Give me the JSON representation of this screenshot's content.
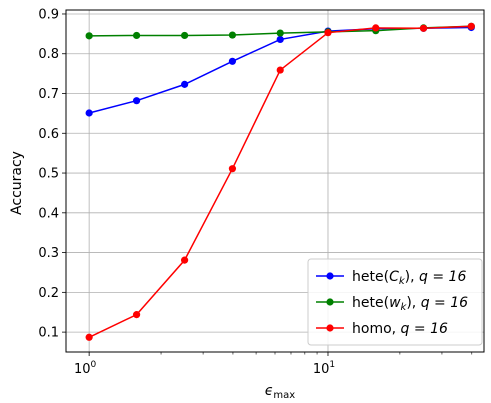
{
  "chart_data": {
    "type": "line",
    "xscale": "log",
    "x": [
      1,
      1.58,
      2.51,
      3.98,
      6.31,
      10,
      15.85,
      25.12,
      39.81
    ],
    "xlim": [
      0.8,
      45
    ],
    "ylim": [
      0.05,
      0.91
    ],
    "grid": true,
    "xlabel_base": "ϵ",
    "xlabel_sub": "max",
    "ylabel": "Accuracy",
    "yticks": [
      0.1,
      0.2,
      0.3,
      0.4,
      0.5,
      0.6,
      0.7,
      0.8,
      0.9
    ],
    "ytick_labels": [
      "0.1",
      "0.2",
      "0.3",
      "0.4",
      "0.5",
      "0.6",
      "0.7",
      "0.8",
      "0.9"
    ],
    "xticks": [
      1,
      10
    ],
    "xtick_labels": [
      {
        "base": "10",
        "exp": "0"
      },
      {
        "base": "10",
        "exp": "1"
      }
    ],
    "legend_position": "lower-right",
    "series": [
      {
        "name_pre": "hete(",
        "name_var": "C",
        "name_sub": "k",
        "name_post": "), ",
        "name_q": "q = 16",
        "color": "#0000ff",
        "values": [
          0.651,
          0.682,
          0.723,
          0.781,
          0.836,
          0.857,
          0.863,
          0.864,
          0.866
        ]
      },
      {
        "name_pre": "hete(",
        "name_var": "w",
        "name_sub": "k",
        "name_post": "), ",
        "name_q": "q = 16",
        "color": "#008000",
        "values": [
          0.845,
          0.846,
          0.846,
          0.847,
          0.852,
          0.855,
          0.858,
          0.865,
          0.869
        ]
      },
      {
        "name_pre": "homo, ",
        "name_var": "",
        "name_sub": "",
        "name_post": "",
        "name_q": "q = 16",
        "color": "#ff0000",
        "values": [
          0.087,
          0.144,
          0.281,
          0.511,
          0.759,
          0.853,
          0.865,
          0.864,
          0.869
        ]
      }
    ]
  }
}
